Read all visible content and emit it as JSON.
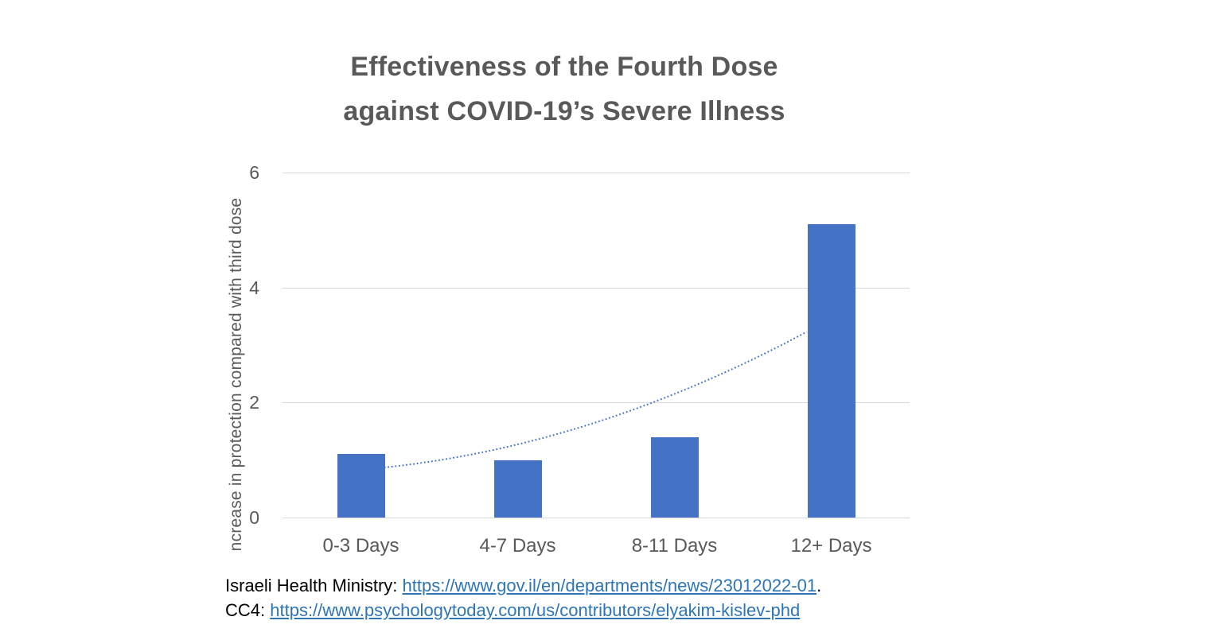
{
  "title": {
    "line1": "Effectiveness of the Fourth Dose",
    "line2": "against COVID-19’s Severe Illness"
  },
  "chart_data": {
    "type": "bar",
    "categories": [
      "0-3 Days",
      "4-7 Days",
      "8-11 Days",
      "12+ Days"
    ],
    "values": [
      1.1,
      1.0,
      1.4,
      5.1
    ],
    "title": "Effectiveness of the Fourth Dose against COVID-19’s Severe Illness",
    "xlabel": "",
    "ylabel": "ncrease in protection compared with third dose",
    "yticks": [
      0,
      2,
      4,
      6
    ],
    "ylim": [
      0,
      6
    ],
    "grid": true,
    "legend": false,
    "bar_color": "#4472c4",
    "trendline": {
      "style": "dotted",
      "color": "#4472c4",
      "points": [
        {
          "x_frac": 0.162,
          "value": 0.87
        },
        {
          "x_frac": 0.59,
          "value": 2.0
        },
        {
          "x_frac": 0.836,
          "value": 3.23
        }
      ]
    }
  },
  "footer": {
    "lines": [
      {
        "segments": [
          {
            "type": "text",
            "text": "Israeli Health Ministry: "
          },
          {
            "type": "link",
            "text": "https://www.gov.il/en/departments/news/23012022-01"
          },
          {
            "type": "text",
            "text": "."
          }
        ]
      },
      {
        "segments": [
          {
            "type": "text",
            "text": "CC4: "
          },
          {
            "type": "link",
            "text": "https://www.psychologytoday.com/us/contributors/elyakim-kislev-phd"
          }
        ]
      }
    ]
  },
  "colors": {
    "title_text": "#595959",
    "axis_text": "#595959",
    "gridline": "#d9d9d9",
    "bar": "#4472c4",
    "link": "#2e75b6",
    "body_text": "#000000"
  }
}
